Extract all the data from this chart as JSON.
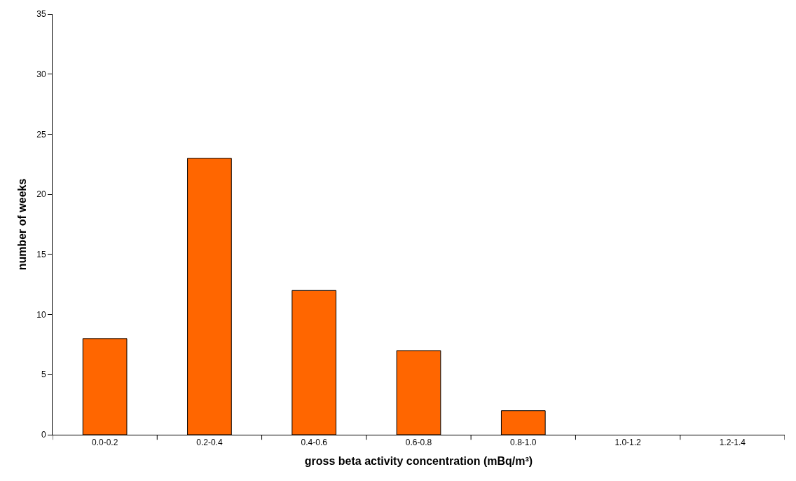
{
  "chart_data": {
    "type": "bar",
    "xlabel": "gross beta activity concentration (mBq/m³)",
    "ylabel": "number of weeks",
    "categories": [
      "0.0-0.2",
      "0.2-0.4",
      "0.4-0.6",
      "0.6-0.8",
      "0.8-1.0",
      "1.0-1.2",
      "1.2-1.4"
    ],
    "values": [
      8,
      23,
      12,
      7,
      2,
      0,
      0
    ],
    "color": "#ff6600",
    "ylim": [
      0,
      35
    ],
    "yticks": [
      0,
      5,
      10,
      15,
      20,
      25,
      30,
      35
    ]
  }
}
